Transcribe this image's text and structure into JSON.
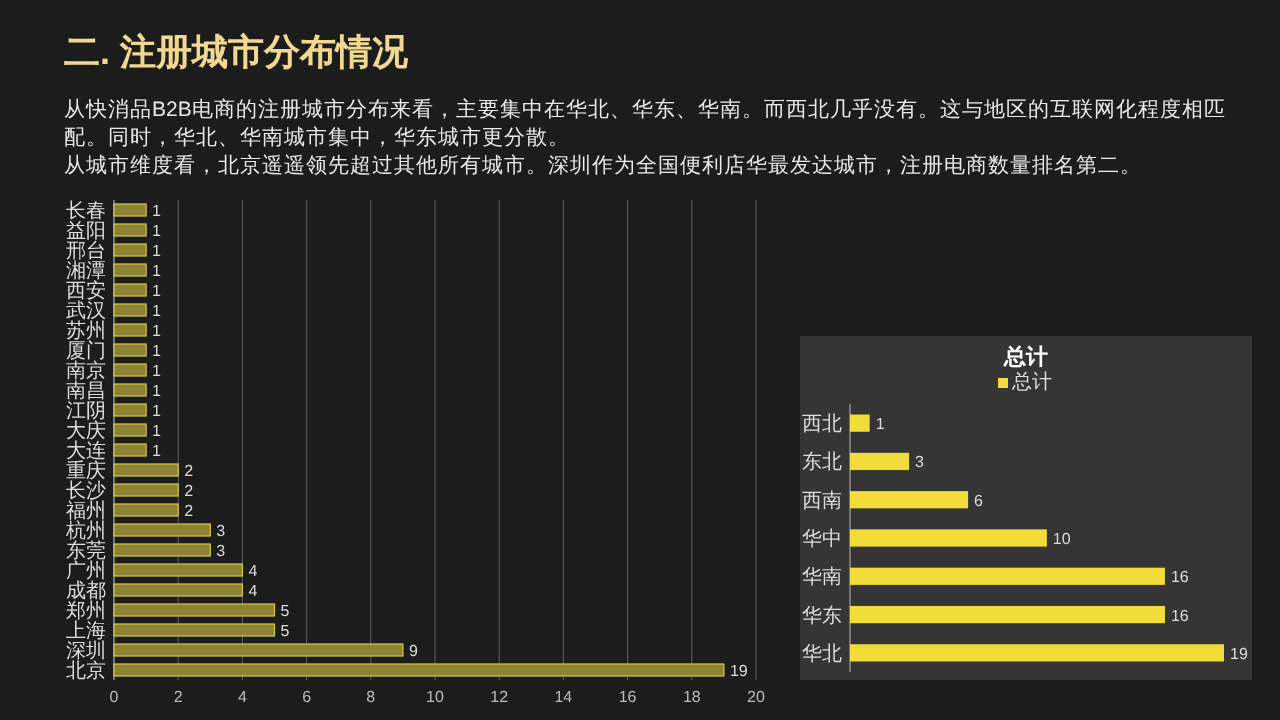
{
  "chart_data": [
    {
      "type": "bar",
      "orientation": "horizontal",
      "title": "二. 注册城市分布情况",
      "annotations": [
        "从快消品B2B电商的注册城市分布来看，主要集中在华北、华东、华南。而西北几乎没有。这与地区的互联网化程度相匹配。同时，华北、华南城市集中，华东城市更分散。",
        "从城市维度看，北京遥遥领先超过其他所有城市。深圳作为全国便利店华最发达城市，注册电商数量排名第二。"
      ],
      "categories": [
        "长春",
        "益阳",
        "邢台",
        "湘潭",
        "西安",
        "武汉",
        "苏州",
        "厦门",
        "南京",
        "南昌",
        "江阴",
        "大庆",
        "大连",
        "重庆",
        "长沙",
        "福州",
        "杭州",
        "东莞",
        "广州",
        "成都",
        "郑州",
        "上海",
        "深圳",
        "北京"
      ],
      "values": [
        1,
        1,
        1,
        1,
        1,
        1,
        1,
        1,
        1,
        1,
        1,
        1,
        1,
        2,
        2,
        2,
        3,
        3,
        4,
        4,
        5,
        5,
        9,
        19
      ],
      "color": "#8c8233",
      "xlim": [
        0,
        20
      ],
      "xticks": [
        0,
        2,
        4,
        6,
        8,
        10,
        12,
        14,
        16,
        18,
        20
      ],
      "grid": "x",
      "data_labels": true
    },
    {
      "type": "bar",
      "orientation": "horizontal",
      "title": "总计",
      "legend": "top",
      "categories": [
        "西北",
        "东北",
        "西南",
        "华中",
        "华南",
        "华东",
        "华北"
      ],
      "series": [
        {
          "name": "总计",
          "color": "#f2dc3a",
          "values": [
            1,
            3,
            6,
            10,
            16,
            16,
            19
          ]
        }
      ],
      "data_labels": true
    }
  ]
}
